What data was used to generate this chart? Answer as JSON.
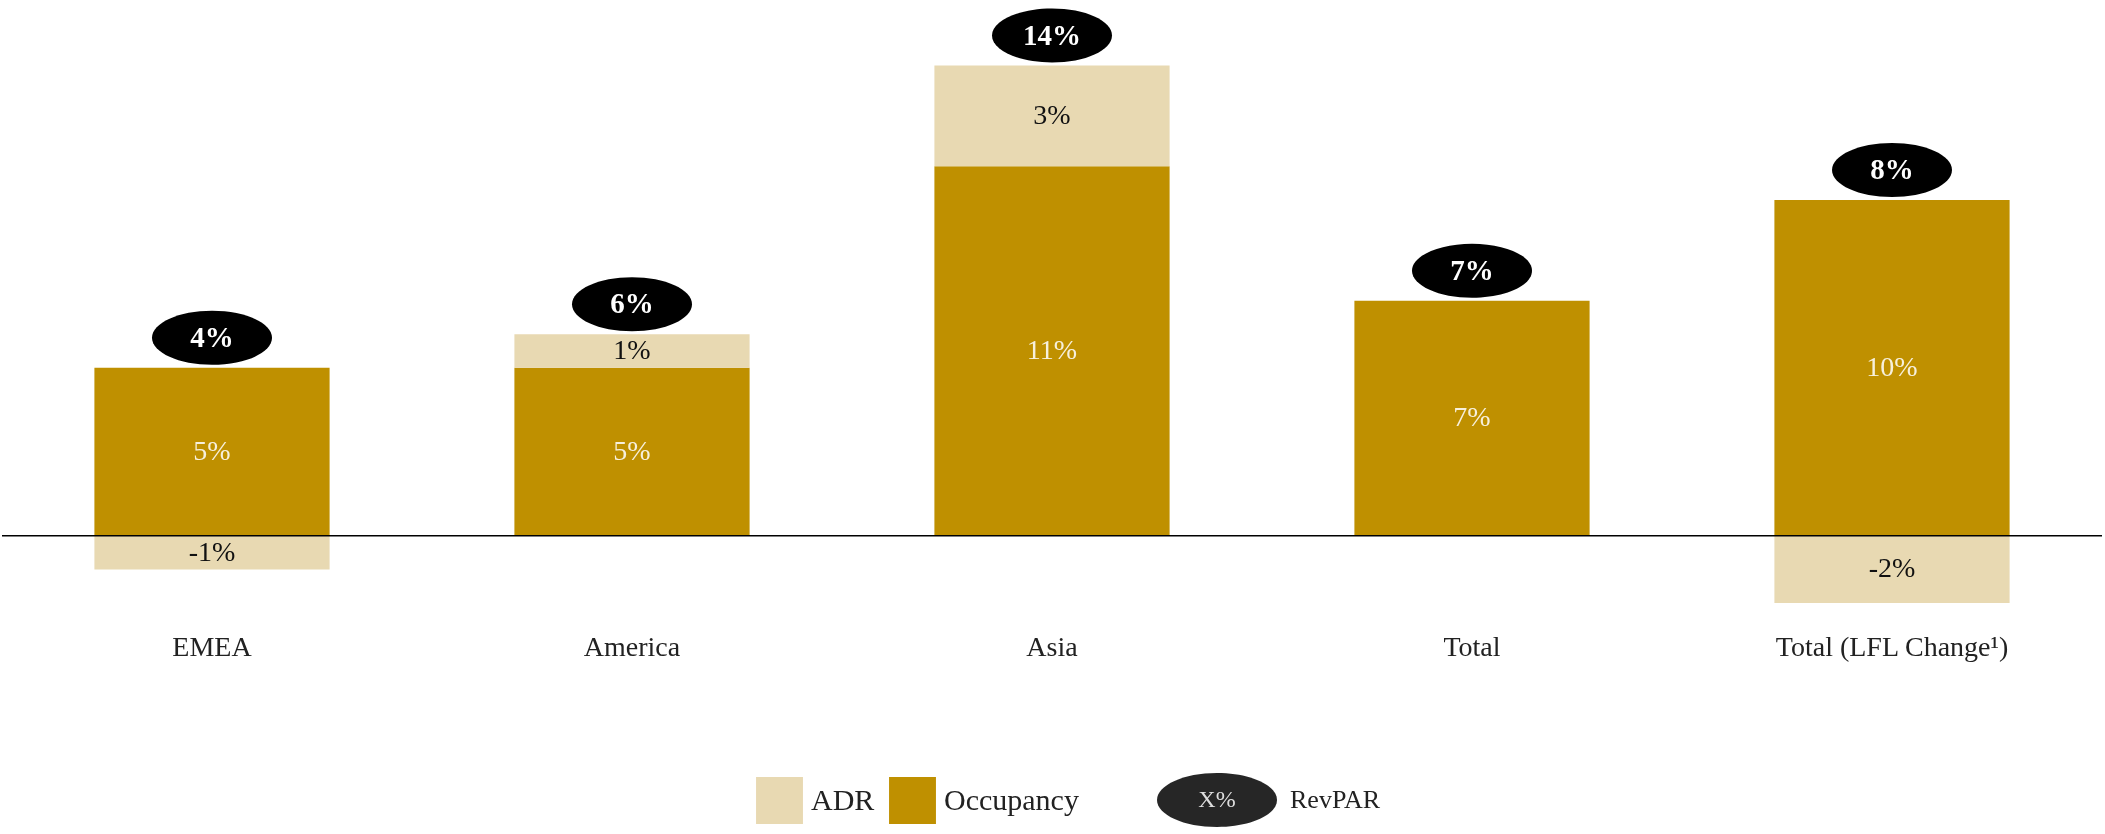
{
  "chart_data": {
    "type": "bar",
    "stacked": true,
    "categories": [
      "EMEA",
      "America",
      "Asia",
      "Total",
      "Total (LFL Change¹)"
    ],
    "series": [
      {
        "name": "Occupancy",
        "color": "#bf9000",
        "values": [
          5,
          5,
          11,
          7,
          10
        ],
        "value_labels": [
          "5%",
          "5%",
          "11%",
          "7%",
          "10%"
        ]
      },
      {
        "name": "ADR",
        "color": "#e8d9b2",
        "values": [
          -1,
          1,
          3,
          null,
          -2
        ],
        "value_labels": [
          "-1%",
          "1%",
          "3%",
          null,
          "-2%"
        ]
      }
    ],
    "totals": [
      "4%",
      "6%",
      "14%",
      "7%",
      "8%"
    ],
    "annotations": [
      "X%",
      "RevPAR"
    ],
    "legend": "bottom"
  }
}
